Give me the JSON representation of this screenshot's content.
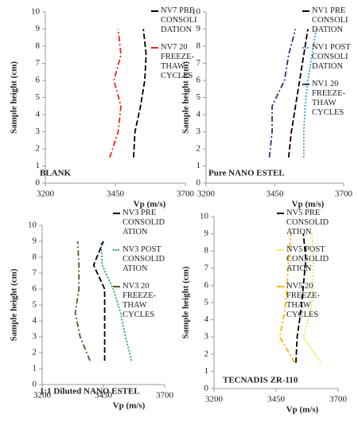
{
  "chart_data": [
    {
      "type": "line",
      "label": "BLANK",
      "xlabel": "Vp (m/s)",
      "ylabel": "Sample height (cm)",
      "xlim": [
        3200,
        3700
      ],
      "xticks": [
        3200,
        3450,
        3700
      ],
      "ylim": [
        0,
        10
      ],
      "yticks": [
        0,
        1,
        2,
        3,
        4,
        5,
        6,
        7,
        8,
        9,
        10
      ],
      "y": [
        1.5,
        3,
        4.5,
        6,
        7.5,
        9
      ],
      "series": [
        {
          "name": "NV7 PRE\nCONSOLI\nDATION",
          "color": "#000000",
          "style": "dashed",
          "values": [
            3515,
            3520,
            3540,
            3555,
            3560,
            3550
          ]
        },
        {
          "name": "NV7 20\nFREEZE-\nTHAW\nCYCLES",
          "color": "#e8251f",
          "style": "dashdot",
          "values": [
            3430,
            3460,
            3470,
            3445,
            3470,
            3460
          ]
        }
      ]
    },
    {
      "type": "line",
      "label": "Pure NANO ESTEL",
      "xlabel": "Vp (m/s)",
      "ylabel": "Sample height (cm)",
      "xlim": [
        3200,
        3700
      ],
      "xticks": [
        3200,
        3450,
        3700
      ],
      "ylim": [
        0,
        10
      ],
      "yticks": [
        0,
        1,
        2,
        3,
        4,
        5,
        6,
        7,
        8,
        9,
        10
      ],
      "y": [
        1.5,
        3,
        4.5,
        6,
        7.5,
        9
      ],
      "series": [
        {
          "name": "NV1 PRE\nCONSOLI\nDATION",
          "color": "#000000",
          "style": "dashed",
          "values": [
            3500,
            3510,
            3525,
            3540,
            3555,
            3570
          ]
        },
        {
          "name": "NV1 POST\nCONSOLI\nDATION",
          "color": "#3f9ad6",
          "style": "dotted",
          "values": [
            3555,
            3555,
            3560,
            3570,
            3585,
            3600
          ]
        },
        {
          "name": "NV1 20\nFREEZE-\nTHAW\nCYCLES",
          "color": "#1f3b73",
          "style": "dashdot",
          "values": [
            3430,
            3440,
            3440,
            3485,
            3500,
            3525
          ]
        }
      ]
    },
    {
      "type": "line",
      "label": "1:1 Diluted NANO ESTEL",
      "xlabel": "Vp (m/s)",
      "ylabel": "Sample height (cm)",
      "xlim": [
        3200,
        3700
      ],
      "xticks": [
        3200,
        3450,
        3700
      ],
      "ylim": [
        0,
        10
      ],
      "yticks": [
        0,
        1,
        2,
        3,
        4,
        5,
        6,
        7,
        8,
        9,
        10
      ],
      "y": [
        1.5,
        3,
        4.5,
        6,
        7.5,
        9
      ],
      "series": [
        {
          "name": "NV3 PRE\nCONSOLID\nATION",
          "color": "#000000",
          "style": "dashed",
          "values": [
            3455,
            3455,
            3455,
            3455,
            3410,
            3450
          ]
        },
        {
          "name": "NV3 POST\nCONSOLID\nATION",
          "color": "#2aa84a",
          "style": "dotted",
          "values": [
            3565,
            3540,
            3520,
            3490,
            3445,
            3440
          ]
        },
        {
          "name": "NV3 20\nFREEZE-\nTHAW\nCYCLES",
          "color": "#4f5a2a",
          "style": "dashdot",
          "values": [
            3395,
            3355,
            3335,
            3350,
            3350,
            3345
          ]
        }
      ]
    },
    {
      "type": "line",
      "label": "TECNADIS ZR-110",
      "xlabel": "Vp (m/s)",
      "ylabel": "Sample height (cm)",
      "xlim": [
        3200,
        3700
      ],
      "xticks": [
        3200,
        3450,
        3700
      ],
      "ylim": [
        0,
        10
      ],
      "yticks": [
        0,
        1,
        2,
        3,
        4,
        5,
        6,
        7,
        8,
        9,
        10
      ],
      "y": [
        1.5,
        3,
        4.5,
        6,
        7.5,
        9
      ],
      "series": [
        {
          "name": "NV5 PRE\nCONSOLID\nATION",
          "color": "#000000",
          "style": "dashed",
          "values": [
            3530,
            3535,
            3550,
            3560,
            3570,
            3560
          ]
        },
        {
          "name": "NV5 POST\nCONSOLID\nATION",
          "color": "#f5e23a",
          "style": "dotted",
          "values": [
            3630,
            3560,
            3590,
            3600,
            3600,
            3595
          ]
        },
        {
          "name": "NV5 20\nFREEZE-\nTHAW\nCYCLES",
          "color": "#f2b705",
          "style": "dashdot",
          "values": [
            3525,
            3465,
            3485,
            3495,
            3500,
            3510
          ]
        }
      ]
    }
  ]
}
